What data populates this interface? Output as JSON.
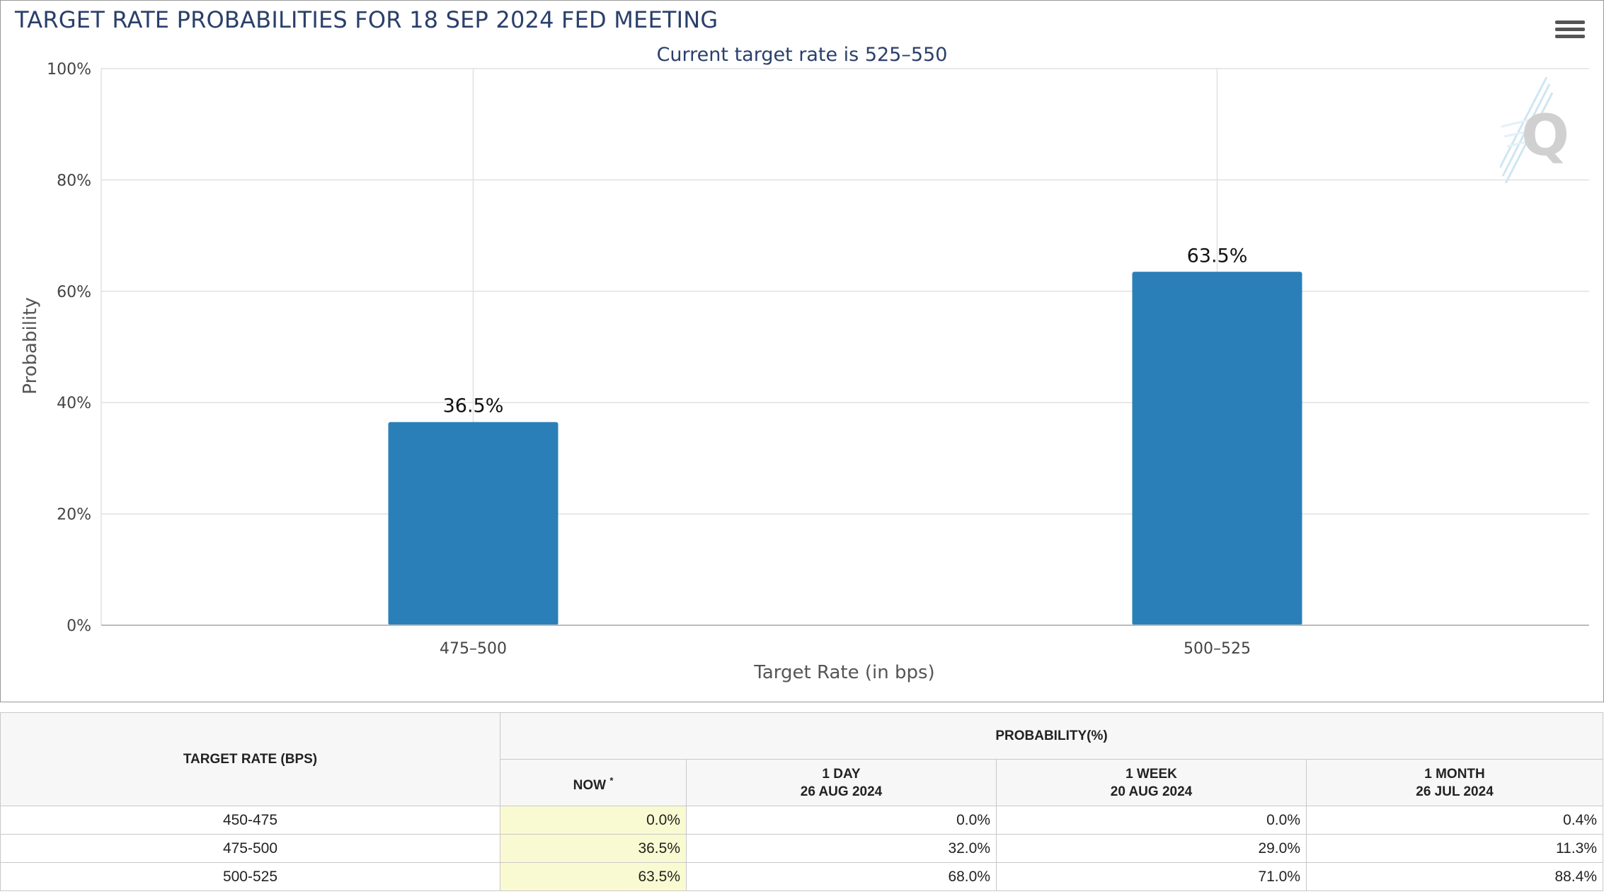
{
  "chart_data": {
    "type": "bar",
    "title": "TARGET RATE PROBABILITIES FOR 18 SEP 2024 FED MEETING",
    "subtitle": "Current target rate is 525–550",
    "xlabel": "Target Rate (in bps)",
    "ylabel": "Probability",
    "categories": [
      "475–500",
      "500–525"
    ],
    "values": [
      36.5,
      63.5
    ],
    "data_labels": [
      "36.5%",
      "63.5%"
    ],
    "ylim": [
      0,
      100
    ],
    "yticks": [
      0,
      20,
      40,
      60,
      80,
      100
    ],
    "ytick_labels": [
      "0%",
      "20%",
      "40%",
      "60%",
      "80%",
      "100%"
    ],
    "bar_color": "#2b7fb8",
    "grid": true,
    "legend": "none"
  },
  "table": {
    "col_target": "TARGET RATE (BPS)",
    "col_probability": "PROBABILITY(%)",
    "sub_now": "NOW",
    "sub_now_mark": "*",
    "sub_day": "1 DAY",
    "sub_day_date": "26 AUG 2024",
    "sub_week": "1 WEEK",
    "sub_week_date": "20 AUG 2024",
    "sub_month": "1 MONTH",
    "sub_month_date": "26 JUL 2024",
    "rows": [
      {
        "rate": "450-475",
        "now": "0.0%",
        "day": "0.0%",
        "week": "0.0%",
        "month": "0.4%"
      },
      {
        "rate": "475-500",
        "now": "36.5%",
        "day": "32.0%",
        "week": "29.0%",
        "month": "11.3%"
      },
      {
        "rate": "500-525",
        "now": "63.5%",
        "day": "68.0%",
        "week": "71.0%",
        "month": "88.4%"
      }
    ],
    "now_highlight_color": "#fafad2"
  },
  "icons": {
    "menu": "hamburger-menu-icon",
    "watermark": "q-logo-icon"
  }
}
